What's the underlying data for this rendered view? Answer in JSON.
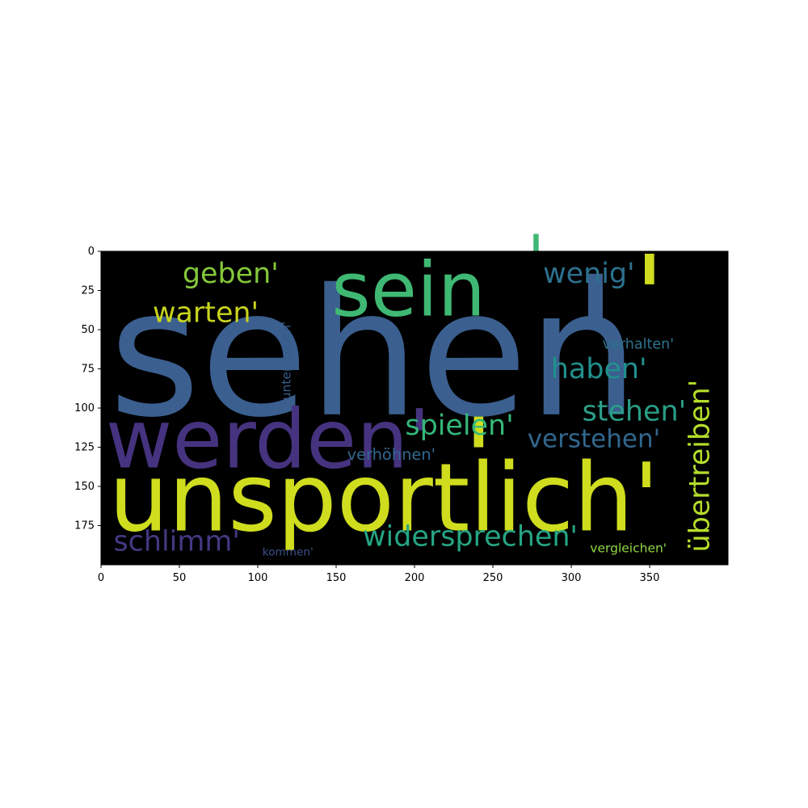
{
  "chart_data": {
    "type": "wordcloud",
    "title": "",
    "xlabel": "",
    "ylabel": "",
    "xlim": [
      0,
      400
    ],
    "ylim": [
      200,
      0
    ],
    "x_ticks": [
      0,
      50,
      100,
      150,
      200,
      250,
      300,
      350
    ],
    "y_ticks": [
      0,
      25,
      50,
      75,
      100,
      125,
      150,
      175
    ],
    "background": "#000000",
    "grid": false,
    "legend": "none",
    "words": [
      {
        "text": "sehen",
        "x": 5,
        "y": 104,
        "size": 112,
        "color": "#3b5f8f",
        "rotate": false
      },
      {
        "text": "'",
        "x": 300,
        "y": 96,
        "size": 112,
        "color": "#3b5f8f",
        "rotate": false
      },
      {
        "text": "unsportlich'",
        "x": 5,
        "y": 178,
        "size": 60,
        "color": "#cfdd1e",
        "rotate": false
      },
      {
        "text": "werden'",
        "x": 3,
        "y": 138,
        "size": 52,
        "color": "#46337f",
        "rotate": false
      },
      {
        "text": "sein",
        "x": 147,
        "y": 41,
        "size": 48,
        "color": "#3fb873",
        "rotate": false
      },
      {
        "text": "'",
        "x": 272,
        "y": 18,
        "size": 40,
        "color": "#3fb873",
        "rotate": false
      },
      {
        "text": "'",
        "x": 340,
        "y": 54,
        "size": 72,
        "color": "#cfdd1e",
        "rotate": false
      },
      {
        "text": "'",
        "x": 231,
        "y": 158,
        "size": 72,
        "color": "#cfdd1e",
        "rotate": false
      },
      {
        "text": "wenig'",
        "x": 282,
        "y": 20,
        "size": 18,
        "color": "#2c718e",
        "rotate": false
      },
      {
        "text": "geben'",
        "x": 52,
        "y": 20,
        "size": 18,
        "color": "#84c83a",
        "rotate": false
      },
      {
        "text": "warten'",
        "x": 33,
        "y": 45,
        "size": 18,
        "color": "#c8d41e",
        "rotate": false
      },
      {
        "text": "haben'",
        "x": 287,
        "y": 81,
        "size": 18,
        "color": "#21908d",
        "rotate": false
      },
      {
        "text": "stehen'",
        "x": 307,
        "y": 108,
        "size": 18,
        "color": "#2a9e87",
        "rotate": false
      },
      {
        "text": "spielen'",
        "x": 194,
        "y": 117,
        "size": 18,
        "color": "#35b779",
        "rotate": false
      },
      {
        "text": "verstehen'",
        "x": 272,
        "y": 125,
        "size": 16,
        "color": "#31688e",
        "rotate": false
      },
      {
        "text": "verhöhnen'",
        "x": 157,
        "y": 133,
        "size": 10,
        "color": "#31688e",
        "rotate": false
      },
      {
        "text": "widersprechen'",
        "x": 167,
        "y": 188,
        "size": 18,
        "color": "#25a584",
        "rotate": false
      },
      {
        "text": "schlimm'",
        "x": 8,
        "y": 191,
        "size": 18,
        "color": "#443983",
        "rotate": false
      },
      {
        "text": "kommen'",
        "x": 103,
        "y": 194,
        "size": 7,
        "color": "#3b528b",
        "rotate": false
      },
      {
        "text": "vergleichen'",
        "x": 312,
        "y": 192,
        "size": 8,
        "color": "#8fd744",
        "rotate": false
      },
      {
        "text": "verhalten'",
        "x": 320,
        "y": 62,
        "size": 9,
        "color": "#2c728e",
        "rotate": false
      },
      {
        "text": "übertreiben'",
        "x": 388,
        "y": 192,
        "size": 18,
        "color": "#b5de2b",
        "rotate": true
      },
      {
        "text": "unterstellen'",
        "x": 121,
        "y": 95,
        "size": 8,
        "color": "#365d8d",
        "rotate": true
      }
    ]
  }
}
